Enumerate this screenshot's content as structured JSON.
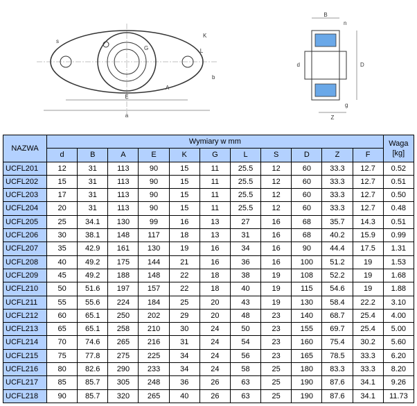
{
  "diagram": {
    "labels": [
      "s",
      "A",
      "a",
      "E",
      "K",
      "G",
      "L",
      "b",
      "d",
      "B",
      "n",
      "g",
      "Z",
      "D"
    ]
  },
  "table": {
    "header_bg": "#b3d1ff",
    "nazwa_label": "NAZWA",
    "wymiary_label": "Wymiary w mm",
    "waga_label": "Waga [kg]",
    "columns": [
      "d",
      "B",
      "A",
      "E",
      "K",
      "G",
      "L",
      "S",
      "D",
      "Z",
      "F"
    ],
    "rows": [
      {
        "name": "UCFL201",
        "d": "12",
        "B": "31",
        "A": "113",
        "E": "90",
        "K": "15",
        "G": "11",
        "L": "25.5",
        "S": "12",
        "D": "60",
        "Z": "33.3",
        "F": "12.7",
        "waga": "0.52"
      },
      {
        "name": "UCFL202",
        "d": "15",
        "B": "31",
        "A": "113",
        "E": "90",
        "K": "15",
        "G": "11",
        "L": "25.5",
        "S": "12",
        "D": "60",
        "Z": "33.3",
        "F": "12.7",
        "waga": "0.51"
      },
      {
        "name": "UCFL203",
        "d": "17",
        "B": "31",
        "A": "113",
        "E": "90",
        "K": "15",
        "G": "11",
        "L": "25.5",
        "S": "12",
        "D": "60",
        "Z": "33.3",
        "F": "12.7",
        "waga": "0.50"
      },
      {
        "name": "UCFL204",
        "d": "20",
        "B": "31",
        "A": "113",
        "E": "90",
        "K": "15",
        "G": "11",
        "L": "25.5",
        "S": "12",
        "D": "60",
        "Z": "33.3",
        "F": "12.7",
        "waga": "0.48"
      },
      {
        "name": "UCFL205",
        "d": "25",
        "B": "34.1",
        "A": "130",
        "E": "99",
        "K": "16",
        "G": "13",
        "L": "27",
        "S": "16",
        "D": "68",
        "Z": "35.7",
        "F": "14.3",
        "waga": "0.51"
      },
      {
        "name": "UCFL206",
        "d": "30",
        "B": "38.1",
        "A": "148",
        "E": "117",
        "K": "18",
        "G": "13",
        "L": "31",
        "S": "16",
        "D": "68",
        "Z": "40.2",
        "F": "15.9",
        "waga": "0.99"
      },
      {
        "name": "UCFL207",
        "d": "35",
        "B": "42.9",
        "A": "161",
        "E": "130",
        "K": "19",
        "G": "16",
        "L": "34",
        "S": "16",
        "D": "90",
        "Z": "44.4",
        "F": "17.5",
        "waga": "1.31"
      },
      {
        "name": "UCFL208",
        "d": "40",
        "B": "49.2",
        "A": "175",
        "E": "144",
        "K": "21",
        "G": "16",
        "L": "36",
        "S": "16",
        "D": "100",
        "Z": "51.2",
        "F": "19",
        "waga": "1.53"
      },
      {
        "name": "UCFL209",
        "d": "45",
        "B": "49.2",
        "A": "188",
        "E": "148",
        "K": "22",
        "G": "18",
        "L": "38",
        "S": "19",
        "D": "108",
        "Z": "52.2",
        "F": "19",
        "waga": "1.68"
      },
      {
        "name": "UCFL210",
        "d": "50",
        "B": "51.6",
        "A": "197",
        "E": "157",
        "K": "22",
        "G": "18",
        "L": "40",
        "S": "19",
        "D": "115",
        "Z": "54.6",
        "F": "19",
        "waga": "1.88"
      },
      {
        "name": "UCFL211",
        "d": "55",
        "B": "55.6",
        "A": "224",
        "E": "184",
        "K": "25",
        "G": "20",
        "L": "43",
        "S": "19",
        "D": "130",
        "Z": "58.4",
        "F": "22.2",
        "waga": "3.10"
      },
      {
        "name": "UCFL212",
        "d": "60",
        "B": "65.1",
        "A": "250",
        "E": "202",
        "K": "29",
        "G": "20",
        "L": "48",
        "S": "23",
        "D": "140",
        "Z": "68.7",
        "F": "25.4",
        "waga": "4.00"
      },
      {
        "name": "UCFL213",
        "d": "65",
        "B": "65.1",
        "A": "258",
        "E": "210",
        "K": "30",
        "G": "24",
        "L": "50",
        "S": "23",
        "D": "155",
        "Z": "69.7",
        "F": "25.4",
        "waga": "5.00"
      },
      {
        "name": "UCFL214",
        "d": "70",
        "B": "74.6",
        "A": "265",
        "E": "216",
        "K": "31",
        "G": "24",
        "L": "54",
        "S": "23",
        "D": "160",
        "Z": "75.4",
        "F": "30.2",
        "waga": "5.60"
      },
      {
        "name": "UCFL215",
        "d": "75",
        "B": "77.8",
        "A": "275",
        "E": "225",
        "K": "34",
        "G": "24",
        "L": "56",
        "S": "23",
        "D": "165",
        "Z": "78.5",
        "F": "33.3",
        "waga": "6.20"
      },
      {
        "name": "UCFL216",
        "d": "80",
        "B": "82.6",
        "A": "290",
        "E": "233",
        "K": "34",
        "G": "24",
        "L": "58",
        "S": "25",
        "D": "180",
        "Z": "83.3",
        "F": "33.3",
        "waga": "8.20"
      },
      {
        "name": "UCFL217",
        "d": "85",
        "B": "85.7",
        "A": "305",
        "E": "248",
        "K": "36",
        "G": "26",
        "L": "63",
        "S": "25",
        "D": "190",
        "Z": "87.6",
        "F": "34.1",
        "waga": "9.26"
      },
      {
        "name": "UCFL218",
        "d": "90",
        "B": "85.7",
        "A": "320",
        "E": "265",
        "K": "40",
        "G": "26",
        "L": "63",
        "S": "25",
        "D": "190",
        "Z": "87.6",
        "F": "34.1",
        "waga": "11.73"
      }
    ]
  }
}
